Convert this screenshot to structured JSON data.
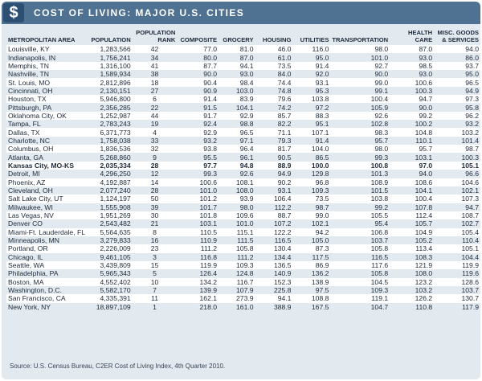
{
  "header": {
    "icon": "dollar-icon",
    "icon_glyph": "$",
    "title": "COST OF LIVING: MAJOR U.S. CITIES"
  },
  "columns": {
    "area": "METROPOLITAN AREA",
    "population": "POPULATION",
    "rank": "POPULATION RANK",
    "composite": "COMPOSITE",
    "grocery": "GROCERY",
    "housing": "HOUSING",
    "utilities": "UTILITIES",
    "transportation": "TRANSPORTATION",
    "health": "HEALTH CARE",
    "misc": "MISC. GOODS & SERVICES"
  },
  "rows": [
    [
      "Louisville, KY",
      "1,283,566",
      "42",
      "77.0",
      "81.0",
      "46.0",
      "116.0",
      "98.0",
      "87.0",
      "94.0"
    ],
    [
      "Indianapolis, IN",
      "1,756,241",
      "34",
      "80.0",
      "87.0",
      "61.0",
      "95.0",
      "101.0",
      "93.0",
      "86.0"
    ],
    [
      "Memphis, TN",
      "1,316,100",
      "41",
      "87.7",
      "94.1",
      "73.5",
      "91.4",
      "92.7",
      "98.5",
      "93.7"
    ],
    [
      "Nashville, TN",
      "1,589,934",
      "38",
      "90.0",
      "93.0",
      "84.0",
      "92.0",
      "90.0",
      "93.0",
      "95.0"
    ],
    [
      "St. Louis, MO",
      "2,812,896",
      "18",
      "90.4",
      "98.4",
      "74.4",
      "93.1",
      "99.0",
      "100.6",
      "96.5"
    ],
    [
      "Cincinnati, OH",
      "2,130,151",
      "27",
      "90.9",
      "103.0",
      "74.8",
      "95.3",
      "99.1",
      "100.3",
      "94.9"
    ],
    [
      "Houston, TX",
      "5,946,800",
      "6",
      "91.4",
      "83.9",
      "79.6",
      "103.8",
      "100.4",
      "94.7",
      "97.3"
    ],
    [
      "Pittsburgh, PA",
      "2,356,285",
      "22",
      "91.5",
      "104.1",
      "74.2",
      "97.2",
      "105.9",
      "90.0",
      "95.8"
    ],
    [
      "Oklahoma City, OK",
      "1,252,987",
      "44",
      "91.7",
      "92.9",
      "85.7",
      "88.3",
      "92.6",
      "99.2",
      "96.2"
    ],
    [
      "Tampa, FL",
      "2,783,243",
      "19",
      "92.4",
      "98.8",
      "82.2",
      "95.1",
      "102.8",
      "100.2",
      "93.2"
    ],
    [
      "Dallas, TX",
      "6,371,773",
      "4",
      "92.9",
      "96.5",
      "71.1",
      "107.1",
      "98.3",
      "104.8",
      "103.2"
    ],
    [
      "Charlotte, NC",
      "1,758,038",
      "33",
      "93.2",
      "97.1",
      "79.3",
      "91.4",
      "95.7",
      "110.1",
      "101.4"
    ],
    [
      "Columbus, OH",
      "1,836,536",
      "32",
      "93.8",
      "96.4",
      "81.7",
      "104.0",
      "98.0",
      "95.7",
      "98.7"
    ],
    [
      "Atlanta, GA",
      "5,268,860",
      "9",
      "95.5",
      "96.1",
      "90.5",
      "86.5",
      "99.3",
      "103.1",
      "100.3"
    ],
    [
      "Kansas City, MO-KS",
      "2,035,334",
      "28",
      "97.7",
      "94.8",
      "88.9",
      "100.0",
      "100.8",
      "97.0",
      "105.1"
    ],
    [
      "Detroit, MI",
      "4,296,250",
      "12",
      "99.3",
      "92.6",
      "94.9",
      "129.8",
      "101.3",
      "94.0",
      "96.6"
    ],
    [
      "Phoenix, AZ",
      "4,192,887",
      "14",
      "100.6",
      "108.1",
      "90.2",
      "96.8",
      "108.9",
      "108.6",
      "104.6"
    ],
    [
      "Cleveland, OH",
      "2,077,240",
      "28",
      "101.0",
      "108.0",
      "93.1",
      "109.3",
      "101.5",
      "104.1",
      "102.1"
    ],
    [
      "Salt Lake City, UT",
      "1,124,197",
      "50",
      "101.2",
      "93.9",
      "106.4",
      "73.5",
      "103.8",
      "100.4",
      "107.3"
    ],
    [
      "Milwaukee, WI",
      "1,555,908",
      "39",
      "101.7",
      "98.0",
      "112.2",
      "98.7",
      "99.2",
      "107.8",
      "94.7"
    ],
    [
      "Las Vegas, NV",
      "1,951,269",
      "30",
      "101.8",
      "109.6",
      "88.7",
      "99.0",
      "105.5",
      "112.4",
      "108.7"
    ],
    [
      "Denver CO",
      "2,543,482",
      "21",
      "103.1",
      "101.0",
      "107.2",
      "102.1",
      "95.4",
      "105.7",
      "102.7"
    ],
    [
      "Miami-Ft. Lauderdale, FL",
      "5,564,635",
      "8",
      "110.5",
      "115.1",
      "122.2",
      "94.2",
      "106.8",
      "104.9",
      "105.4"
    ],
    [
      "Minneapolis, MN",
      "3,279,833",
      "16",
      "110.9",
      "111.5",
      "116.5",
      "105.0",
      "103.7",
      "105.2",
      "110.4"
    ],
    [
      "Portland, OR",
      "2,226,009",
      "23",
      "111.2",
      "105.8",
      "130.4",
      "87.3",
      "105.8",
      "113.4",
      "105.1"
    ],
    [
      "Chicago, IL",
      "9,461,105",
      "3",
      "116.8",
      "111.2",
      "134.4",
      "117.5",
      "116.5",
      "108.3",
      "104.4"
    ],
    [
      "Seattle, WA",
      "3,439,809",
      "15",
      "119.9",
      "109.3",
      "136.5",
      "86.9",
      "117.6",
      "121.9",
      "119.9"
    ],
    [
      "Philadelphia, PA",
      "5,965,343",
      "5",
      "126.4",
      "124.8",
      "140.9",
      "136.2",
      "105.8",
      "108.0",
      "119.6"
    ],
    [
      "Boston, MA",
      "4,552,402",
      "10",
      "134.2",
      "116.7",
      "152.3",
      "138.9",
      "104.5",
      "123.2",
      "128.6"
    ],
    [
      "Washington, D.C.",
      "5,582,170",
      "7",
      "139.9",
      "107.9",
      "225.8",
      "97.5",
      "109.3",
      "103.2",
      "103.7"
    ],
    [
      "San Francisco, CA",
      "4,335,391",
      "11",
      "162.1",
      "273.9",
      "94.1",
      "108.8",
      "119.1",
      "126.2",
      "130.7"
    ],
    [
      "New York, NY",
      "18,897,109",
      "1",
      "218.0",
      "161.0",
      "388.9",
      "167.5",
      "104.7",
      "110.8",
      "117.9"
    ]
  ],
  "highlight_row": 14,
  "source": "Source: U.S. Census Bureau, C2ER Cost of Living Index, 4th Quarter 2010.",
  "colors": {
    "header_bg": "#4f7192",
    "icon_bg": "#2c4f73",
    "panel_bg": "#e2e9ef",
    "alt_row": "#ffffff"
  }
}
